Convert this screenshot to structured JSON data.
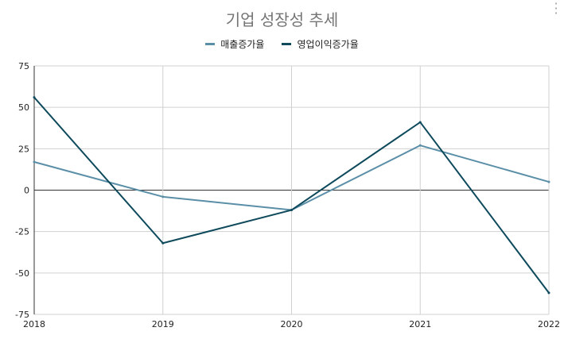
{
  "chart_data": {
    "type": "line",
    "title": "기업 성장성 추세",
    "x": [
      "2018",
      "2019",
      "2020",
      "2021",
      "2022"
    ],
    "series": [
      {
        "name": "매출증가율",
        "values": [
          17,
          -4,
          -12,
          27,
          5
        ],
        "color": "#5b8fa8"
      },
      {
        "name": "영업이익증가율",
        "values": [
          56,
          -32,
          -12,
          41,
          -62
        ],
        "color": "#0e4a5c"
      }
    ],
    "ylim": [
      -75,
      75
    ],
    "yticks": [
      75,
      50,
      25,
      0,
      -25,
      -50,
      -75
    ],
    "xlabel": "",
    "ylabel": "",
    "grid": true,
    "legend": "top"
  },
  "menu_icon": "more-vertical-icon"
}
